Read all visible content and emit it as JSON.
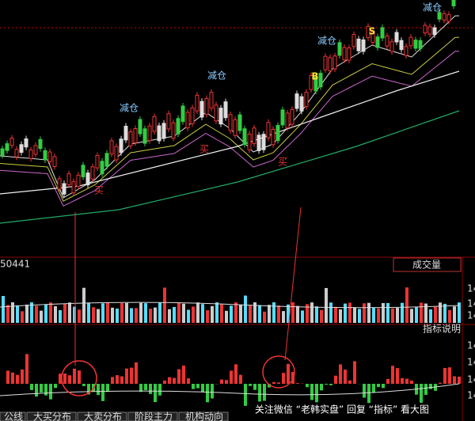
{
  "panels": {
    "code": "50441",
    "volume_title": "成交量",
    "indicator_title": "指标说明",
    "volume_axis": [
      "14",
      "14",
      "14"
    ],
    "indicator_axis": [
      "14",
      "14",
      "14",
      "14"
    ]
  },
  "annotations": {
    "reduce": [
      "减仓",
      "减仓",
      "减仓",
      "减仓"
    ],
    "sell": "S",
    "buy_mark": "B",
    "buy": [
      "买",
      "买",
      "买"
    ]
  },
  "tabs": [
    "公线",
    "大买分布",
    "大卖分布",
    "阶段主力",
    "机构动向"
  ],
  "watermark": "关注微信 “老韩实盘” 回复 “指标” 看大图"
}
